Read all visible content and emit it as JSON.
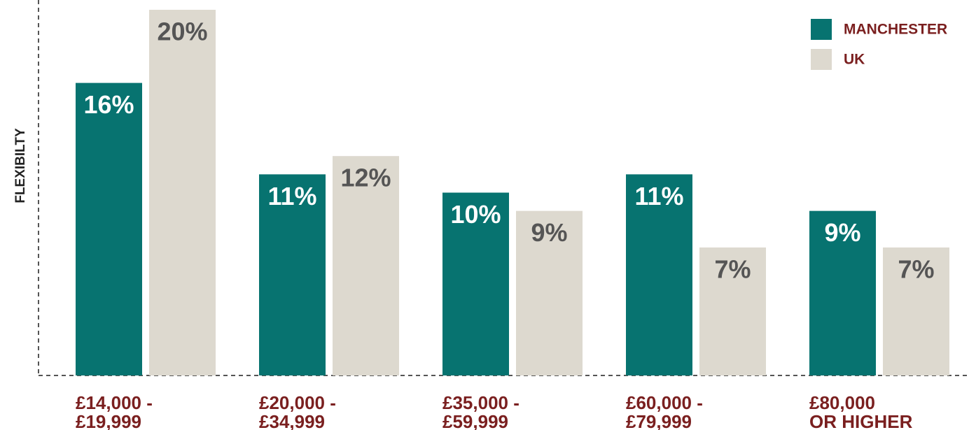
{
  "chart_data": {
    "type": "bar",
    "y_label": "FLEXIBILTY",
    "categories": [
      "£14,000 -\n£19,999",
      "£20,000 -\n£34,999",
      "£35,000 -\n£59,999",
      "£60,000 -\n£79,999",
      "£80,000\nOR HIGHER"
    ],
    "series": [
      {
        "name": "MANCHESTER",
        "color": "#077370",
        "values": [
          16,
          11,
          10,
          11,
          9
        ],
        "value_labels": [
          "16%",
          "11%",
          "10%",
          "11%",
          "9%"
        ]
      },
      {
        "name": "UK",
        "color": "#ddd9cf",
        "values": [
          20,
          12,
          9,
          7,
          7
        ],
        "value_labels": [
          "20%",
          "12%",
          "9%",
          "7%",
          "7%"
        ]
      }
    ],
    "ylim": [
      0,
      20
    ],
    "legend": "upper right"
  }
}
